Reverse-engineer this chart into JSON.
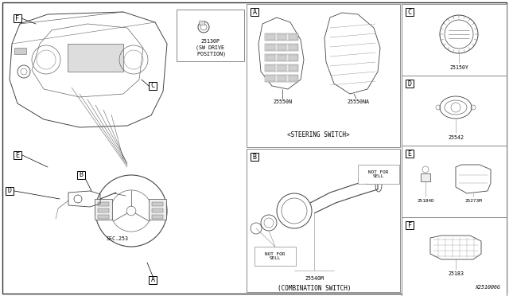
{
  "bg_color": "#ffffff",
  "border_color": "#333333",
  "fig_width": 6.4,
  "fig_height": 3.72,
  "dpi": 100,
  "diagram_code": "X251006G",
  "A_part1": "25550N",
  "A_part2": "25550NA",
  "A_caption": "<STEERING SWITCH>",
  "B_part": "25540M",
  "B_caption": "(COMBINATION SWITCH)",
  "B_nfs1": "NOT FOR\nSELL",
  "B_nfs2": "NOT FOR\nSELL",
  "C_part": "25150Y",
  "D_part": "25542",
  "E_part1": "25184D",
  "E_part2": "25273M",
  "F_part": "25183",
  "drive_label": "25130P",
  "drive_caption": "(SW DRIVE\n POSITION)",
  "SEC253": "SEC.253",
  "gray1": "#444444",
  "gray2": "#666666",
  "gray3": "#888888",
  "lw_main": 0.7,
  "lw_thin": 0.4,
  "font_size": 5.5,
  "font_size_sm": 4.8
}
